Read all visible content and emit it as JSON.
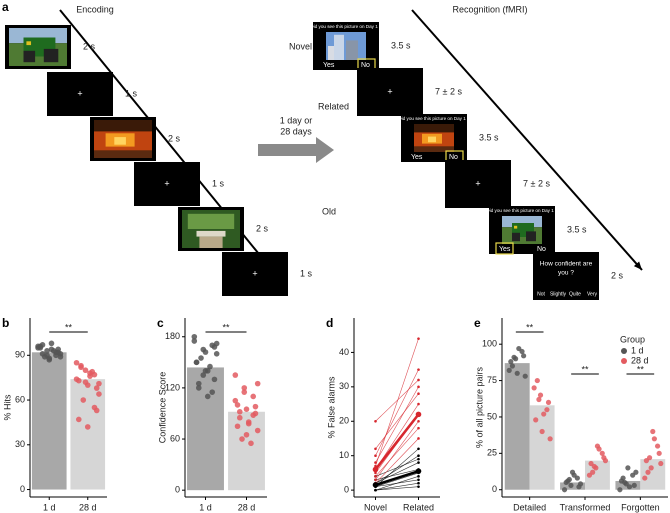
{
  "panel_a": {
    "label": "a",
    "encoding": {
      "title": "Encoding",
      "durations": [
        "2 s",
        "1 s",
        "2 s",
        "1 s",
        "2 s",
        "1 s"
      ],
      "fixation": "+"
    },
    "delay": [
      "1 day or",
      "28 days"
    ],
    "recognition": {
      "title": "Recognition (fMRI)",
      "conditions": [
        "Novel",
        "Related",
        "Old"
      ],
      "question": "Did you see this picture on Day 1 ?",
      "yes": "Yes",
      "no": "No",
      "durations": [
        "3.5 s",
        "7 ± 2 s",
        "3.5 s",
        "7 ± 2 s",
        "3.5 s",
        "2 s"
      ],
      "confidence": [
        "How confident are",
        "you ?"
      ],
      "scale": [
        "Not",
        "Slightly",
        "Quite",
        "Very"
      ]
    }
  },
  "chart_data": [
    {
      "type": "bar",
      "label": "b",
      "y_label": "% Hits",
      "categories": [
        "1 d",
        "28 d"
      ],
      "values": [
        92,
        74
      ],
      "colors": [
        "#a8a8a8",
        "#d6d6d6"
      ],
      "point_colors": [
        "#555555",
        "#e35b60"
      ],
      "points": [
        [
          95,
          93,
          90,
          96,
          88,
          92,
          97,
          94,
          91,
          89,
          93,
          96,
          90,
          92,
          95,
          87,
          94,
          91,
          98,
          89
        ],
        [
          85,
          80,
          77,
          73,
          70,
          68,
          82,
          76,
          64,
          60,
          79,
          74,
          72,
          55,
          47,
          42,
          53,
          83,
          78,
          71
        ]
      ],
      "ylim": [
        -5,
        115
      ],
      "yticks": [
        0,
        30,
        60,
        90
      ],
      "significance": "**"
    },
    {
      "type": "bar",
      "label": "c",
      "y_label": "Confidence Score",
      "categories": [
        "1 d",
        "28 d"
      ],
      "values": [
        144,
        92
      ],
      "colors": [
        "#a8a8a8",
        "#d6d6d6"
      ],
      "point_colors": [
        "#555555",
        "#e35b60"
      ],
      "points": [
        [
          180,
          165,
          170,
          150,
          140,
          130,
          120,
          110,
          160,
          155,
          145,
          175,
          135,
          115,
          150,
          162,
          168,
          125,
          140,
          172
        ],
        [
          135,
          120,
          110,
          100,
          95,
          90,
          85,
          80,
          70,
          60,
          55,
          105,
          115,
          88,
          75,
          65,
          98,
          92,
          78,
          125
        ]
      ],
      "ylim": [
        -8,
        202
      ],
      "yticks": [
        0,
        60,
        120,
        180
      ],
      "significance": "**"
    },
    {
      "type": "line",
      "label": "d",
      "y_label": "% False alarms",
      "categories": [
        "Novel",
        "Related"
      ],
      "series": [
        {
          "color": "#000000",
          "mean": [
            1.5,
            5.5
          ],
          "subjects": [
            [
              0,
              2
            ],
            [
              1,
              5
            ],
            [
              2,
              8
            ],
            [
              0,
              4
            ],
            [
              1,
              12
            ],
            [
              3,
              6
            ],
            [
              0,
              1
            ],
            [
              2,
              10
            ],
            [
              1,
              3
            ],
            [
              4,
              9
            ]
          ]
        },
        {
          "color": "#d7272e",
          "mean": [
            6,
            22
          ],
          "subjects": [
            [
              2,
              15
            ],
            [
              5,
              22
            ],
            [
              8,
              30
            ],
            [
              4,
              18
            ],
            [
              10,
              35
            ],
            [
              6,
              25
            ],
            [
              12,
              28
            ],
            [
              3,
              20
            ],
            [
              20,
              32
            ],
            [
              7,
              44
            ]
          ]
        }
      ],
      "ylim": [
        -2,
        50
      ],
      "yticks": [
        0,
        10,
        20,
        30,
        40
      ]
    },
    {
      "type": "bar",
      "label": "e",
      "y_label": "% of all picture pairs",
      "categories": [
        "Detailed",
        "Transformed",
        "Forgotten"
      ],
      "legend_title": "Group",
      "series": [
        {
          "name": "1 d",
          "color": "#a8a8a8",
          "point_color": "#555555",
          "values": [
            87,
            5,
            6
          ],
          "points": [
            [
              82,
              90,
              95,
              88,
              80,
              92,
              85,
              97,
              78,
              91
            ],
            [
              0,
              3,
              8,
              5,
              12,
              2,
              6,
              10,
              4,
              7
            ],
            [
              0,
              4,
              10,
              6,
              15,
              3,
              8,
              2,
              12,
              5
            ]
          ]
        },
        {
          "name": "28 d",
          "color": "#d6d6d6",
          "point_color": "#e35b60",
          "values": [
            58,
            20,
            21
          ],
          "points": [
            [
              70,
              65,
              55,
              48,
              40,
              60,
              75,
              52,
              35,
              62
            ],
            [
              10,
              15,
              25,
              18,
              30,
              22,
              12,
              28,
              20,
              16
            ],
            [
              8,
              15,
              30,
              20,
              40,
              25,
              12,
              35,
              18,
              22
            ]
          ]
        }
      ],
      "ylim": [
        -5,
        118
      ],
      "yticks": [
        0,
        25,
        50,
        75,
        100
      ],
      "significance": [
        "**",
        "**",
        "**"
      ]
    }
  ]
}
